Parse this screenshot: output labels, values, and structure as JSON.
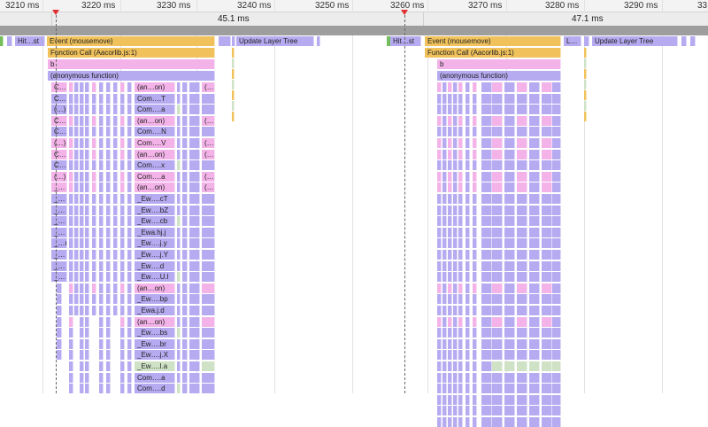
{
  "ruler": {
    "ticks": [
      "3210 ms",
      "3220 ms",
      "3230 ms",
      "3240 ms",
      "3250 ms",
      "3260 ms",
      "3270 ms",
      "3280 ms",
      "3290 ms",
      "33"
    ]
  },
  "frames": {
    "first": "45.1 ms",
    "second": "47.1 ms"
  },
  "colors": {
    "loading": "#b6abf1",
    "scripting": "#f1c25b",
    "call": "#f3b3e8",
    "rendering": "#cfe2c6",
    "painting": "#73bd5c",
    "marker": "#e03030"
  },
  "left": {
    "hit_test": "Hit…st",
    "event": "Event (mousemove)",
    "function_call": "Function Call (Aacorlib.js:1)",
    "b": "b",
    "anonymous": "(anonymous function)",
    "layer_tree": "Update Layer Tree",
    "stack": [
      {
        "a": "C…",
        "b": "(an…on)",
        "c": "(…",
        "color": "call"
      },
      {
        "a": "C…",
        "b": "Com….T",
        "c": "",
        "color": "loading"
      },
      {
        "a": "(…)",
        "b": "Com….a",
        "c": "",
        "color": "loading"
      },
      {
        "a": "C…",
        "b": "(an…on)",
        "c": "(…",
        "color": "call"
      },
      {
        "a": "C…",
        "b": "Com….N",
        "c": "",
        "color": "loading"
      },
      {
        "a": "(…)",
        "b": "Com….V",
        "c": "(…",
        "color": "call"
      },
      {
        "a": "C…",
        "b": "(an…on)",
        "c": "(…",
        "color": "call"
      },
      {
        "a": "C…",
        "b": "Com….x",
        "c": "",
        "color": "loading"
      },
      {
        "a": "(…)",
        "b": "Com….a",
        "c": "(…",
        "color": "call"
      },
      {
        "a": "_…",
        "b": "(an…on)",
        "c": "(…",
        "color": "call"
      },
      {
        "a": "_…",
        "b": "_Ew….cT",
        "c": "",
        "color": "loading"
      },
      {
        "a": "_…",
        "b": "_Ew….bZ",
        "c": "",
        "color": "loading"
      },
      {
        "a": "_…",
        "b": "_Ew….cb",
        "c": "",
        "color": "loading"
      },
      {
        "a": "_…",
        "b": "_Ewa.hj.j",
        "c": "",
        "color": "loading"
      },
      {
        "a": "_…r",
        "b": "_Ew….j.y",
        "c": "",
        "color": "loading"
      },
      {
        "a": "_…",
        "b": "_Ew….j.Y",
        "c": "",
        "color": "loading"
      },
      {
        "a": "_…",
        "b": "_Ew….d",
        "c": "",
        "color": "loading"
      },
      {
        "a": "_…",
        "b": "_Ew….U.l",
        "c": "",
        "color": "loading"
      },
      {
        "a": "",
        "b": "(an…on)",
        "c": "",
        "color": "call"
      },
      {
        "a": "",
        "b": "_Ew….bp",
        "c": "",
        "color": "loading"
      },
      {
        "a": "",
        "b": "_Ewa.j.d",
        "c": "",
        "color": "loading"
      },
      {
        "a": "",
        "b": "(an…on)",
        "c": "",
        "color": "call"
      },
      {
        "a": "",
        "b": "_Ew….bs",
        "c": "",
        "color": "loading"
      },
      {
        "a": "",
        "b": "_Ew….br",
        "c": "",
        "color": "loading"
      },
      {
        "a": "",
        "b": "_Ew….j.X",
        "c": "",
        "color": "loading"
      },
      {
        "a": "",
        "b": "_Ew….l.a",
        "c": "",
        "color": "rendering"
      },
      {
        "a": "",
        "b": "Com….a",
        "c": "",
        "color": "loading"
      },
      {
        "a": "",
        "b": "Com….d",
        "c": "",
        "color": "loading"
      }
    ]
  },
  "right": {
    "hit_test": "Hit…st",
    "event": "Event (mousemove)",
    "function_call": "Function Call (Aacorlib.js:1)",
    "b": "b",
    "anonymous": "(anonymous function)",
    "small": "L…",
    "layer_tree": "Update Layer Tree"
  }
}
